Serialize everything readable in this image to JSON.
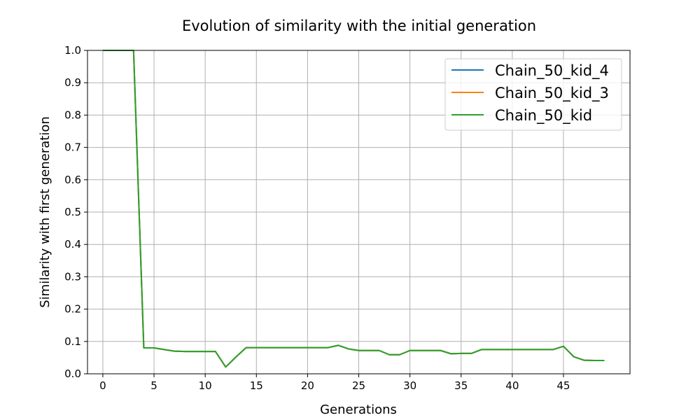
{
  "chart_data": {
    "type": "line",
    "title": "Evolution of similarity with the initial generation",
    "xlabel": "Generations",
    "ylabel": "Similarity with first generation",
    "xlim": [
      -1.5,
      51.5
    ],
    "ylim": [
      0,
      1.0
    ],
    "xticks": [
      0,
      5,
      10,
      15,
      20,
      25,
      30,
      35,
      40,
      45
    ],
    "yticks": [
      0.0,
      0.1,
      0.2,
      0.3,
      0.4,
      0.5,
      0.6,
      0.7,
      0.8,
      0.9,
      1.0
    ],
    "grid": true,
    "legend_position": "top-right",
    "x": [
      0,
      1,
      2,
      3,
      4,
      5,
      6,
      7,
      8,
      9,
      10,
      11,
      12,
      13,
      14,
      15,
      16,
      17,
      18,
      19,
      20,
      21,
      22,
      23,
      24,
      25,
      26,
      27,
      28,
      29,
      30,
      31,
      32,
      33,
      34,
      35,
      36,
      37,
      38,
      39,
      40,
      41,
      42,
      43,
      44,
      45,
      46,
      47,
      48,
      49
    ],
    "series": [
      {
        "name": "Chain_50_kid_4",
        "color": "#1f77b4",
        "values": [
          1.0,
          1.0,
          1.0,
          1.0,
          0.08,
          0.08,
          0.075,
          0.07,
          0.069,
          0.069,
          0.069,
          0.069,
          0.021,
          0.052,
          0.081,
          0.081,
          0.081,
          0.081,
          0.081,
          0.081,
          0.081,
          0.081,
          0.081,
          0.088,
          0.077,
          0.072,
          0.072,
          0.072,
          0.059,
          0.059,
          0.072,
          0.072,
          0.072,
          0.072,
          0.062,
          0.063,
          0.063,
          0.075,
          0.075,
          0.075,
          0.075,
          0.075,
          0.075,
          0.075,
          0.075,
          0.085,
          0.053,
          0.042,
          0.041,
          0.041
        ]
      },
      {
        "name": "Chain_50_kid_3",
        "color": "#ff7f0e",
        "values": [
          1.0,
          1.0,
          1.0,
          1.0,
          0.08,
          0.08,
          0.075,
          0.07,
          0.069,
          0.069,
          0.069,
          0.069,
          0.021,
          0.052,
          0.081,
          0.081,
          0.081,
          0.081,
          0.081,
          0.081,
          0.081,
          0.081,
          0.081,
          0.088,
          0.077,
          0.072,
          0.072,
          0.072,
          0.059,
          0.059,
          0.072,
          0.072,
          0.072,
          0.072,
          0.062,
          0.063,
          0.063,
          0.075,
          0.075,
          0.075,
          0.075,
          0.075,
          0.075,
          0.075,
          0.075,
          0.085,
          0.053,
          0.042,
          0.041,
          0.041
        ]
      },
      {
        "name": "Chain_50_kid",
        "color": "#2ca02c",
        "values": [
          1.0,
          1.0,
          1.0,
          1.0,
          0.08,
          0.08,
          0.075,
          0.07,
          0.069,
          0.069,
          0.069,
          0.069,
          0.021,
          0.052,
          0.081,
          0.081,
          0.081,
          0.081,
          0.081,
          0.081,
          0.081,
          0.081,
          0.081,
          0.088,
          0.077,
          0.072,
          0.072,
          0.072,
          0.059,
          0.059,
          0.072,
          0.072,
          0.072,
          0.072,
          0.062,
          0.063,
          0.063,
          0.075,
          0.075,
          0.075,
          0.075,
          0.075,
          0.075,
          0.075,
          0.075,
          0.085,
          0.053,
          0.042,
          0.041,
          0.041
        ]
      }
    ]
  }
}
